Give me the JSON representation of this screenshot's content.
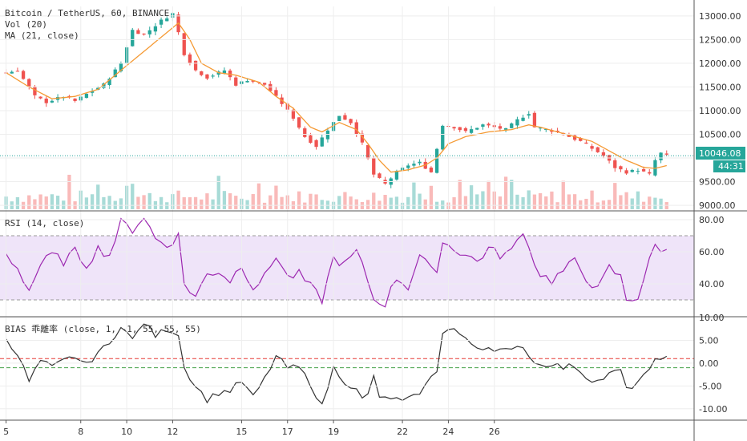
{
  "main_legend": {
    "title": "Bitcoin / TetherUS, 60, BINANCE",
    "vol": "Vol (20)",
    "ma": "MA (21, close)"
  },
  "rsi_legend": "RSI (14, close)",
  "bias_legend": "BIAS 乖離率 (close, 1, -1, 55, 55, 55)",
  "price_badge": {
    "price": "10046.08",
    "countdown": "44:31"
  },
  "colors": {
    "up": "#26a69a",
    "down": "#ef5350",
    "ma": "#f59a34",
    "rsi": "#9c27b0",
    "rsi_band": "#e8d9f7",
    "bias": "#333333",
    "bias_upper": "#e53935",
    "bias_lower": "#43a047",
    "last_price_line": "#26a69a",
    "grid": "#eeeeee"
  },
  "chart_data": [
    {
      "type": "candlestick",
      "ylim": [
        8900,
        13200
      ],
      "yticks": [
        9000,
        9500,
        10000,
        10500,
        11000,
        11500,
        12000,
        12500,
        13000
      ],
      "ytick_labels": [
        "9000.00",
        "9500.00",
        "",
        "10500.00",
        "11000.00",
        "11500.00",
        "12000.00",
        "12500.00",
        "13000.00"
      ],
      "last_price": 10046.08,
      "close_path": [
        [
          0,
          11800
        ],
        [
          2,
          11850
        ],
        [
          5,
          11300
        ],
        [
          7,
          11180
        ],
        [
          10,
          11300
        ],
        [
          12,
          11200
        ],
        [
          14,
          11350
        ],
        [
          17,
          11550
        ],
        [
          20,
          12000
        ],
        [
          22,
          12700
        ],
        [
          24,
          12600
        ],
        [
          27,
          12900
        ],
        [
          29,
          13050
        ],
        [
          30,
          12650
        ],
        [
          31,
          12200
        ],
        [
          33,
          11850
        ],
        [
          35,
          11700
        ],
        [
          38,
          11850
        ],
        [
          40,
          11550
        ],
        [
          42,
          11650
        ],
        [
          45,
          11550
        ],
        [
          48,
          11150
        ],
        [
          50,
          10850
        ],
        [
          52,
          10450
        ],
        [
          54,
          10250
        ],
        [
          56,
          10600
        ],
        [
          58,
          10900
        ],
        [
          60,
          10750
        ],
        [
          62,
          10300
        ],
        [
          64,
          9650
        ],
        [
          66,
          9450
        ],
        [
          68,
          9700
        ],
        [
          70,
          9850
        ],
        [
          72,
          9900
        ],
        [
          74,
          9700
        ],
        [
          76,
          10700
        ],
        [
          78,
          10650
        ],
        [
          80,
          10550
        ],
        [
          83,
          10700
        ],
        [
          85,
          10650
        ],
        [
          87,
          10600
        ],
        [
          89,
          10800
        ],
        [
          91,
          10950
        ],
        [
          92,
          10650
        ],
        [
          94,
          10600
        ],
        [
          96,
          10550
        ],
        [
          98,
          10450
        ],
        [
          100,
          10350
        ],
        [
          102,
          10200
        ],
        [
          104,
          10050
        ],
        [
          106,
          9800
        ],
        [
          108,
          9700
        ],
        [
          110,
          9750
        ],
        [
          112,
          9650
        ],
        [
          113,
          9950
        ],
        [
          114,
          10100
        ],
        [
          115,
          10046
        ]
      ],
      "ma_path": [
        [
          0,
          11800
        ],
        [
          4,
          11500
        ],
        [
          8,
          11250
        ],
        [
          12,
          11300
        ],
        [
          16,
          11450
        ],
        [
          20,
          11850
        ],
        [
          24,
          12250
        ],
        [
          28,
          12650
        ],
        [
          30,
          12850
        ],
        [
          32,
          12500
        ],
        [
          34,
          12000
        ],
        [
          37,
          11800
        ],
        [
          40,
          11750
        ],
        [
          44,
          11600
        ],
        [
          47,
          11300
        ],
        [
          50,
          11050
        ],
        [
          53,
          10650
        ],
        [
          55,
          10550
        ],
        [
          58,
          10750
        ],
        [
          61,
          10600
        ],
        [
          63,
          10300
        ],
        [
          65,
          9950
        ],
        [
          67,
          9700
        ],
        [
          70,
          9750
        ],
        [
          73,
          9850
        ],
        [
          75,
          10000
        ],
        [
          77,
          10300
        ],
        [
          80,
          10450
        ],
        [
          84,
          10550
        ],
        [
          88,
          10600
        ],
        [
          91,
          10700
        ],
        [
          93,
          10650
        ],
        [
          96,
          10550
        ],
        [
          99,
          10450
        ],
        [
          102,
          10350
        ],
        [
          105,
          10150
        ],
        [
          108,
          9950
        ],
        [
          111,
          9800
        ],
        [
          113,
          9780
        ],
        [
          115,
          9840
        ]
      ],
      "volume_max": 450,
      "ma_period": 21
    },
    {
      "type": "line",
      "name": "RSI",
      "ylim": [
        20,
        85
      ],
      "yticks": [
        40,
        60,
        80
      ],
      "ytick_labels": [
        "40.00",
        "60.00",
        "80.00"
      ],
      "band": [
        30,
        70
      ],
      "path": [
        [
          0,
          58
        ],
        [
          2,
          50
        ],
        [
          4,
          36
        ],
        [
          6,
          52
        ],
        [
          8,
          58
        ],
        [
          10,
          54
        ],
        [
          12,
          60
        ],
        [
          14,
          52
        ],
        [
          16,
          62
        ],
        [
          18,
          58
        ],
        [
          20,
          78
        ],
        [
          22,
          74
        ],
        [
          24,
          82
        ],
        [
          26,
          68
        ],
        [
          28,
          64
        ],
        [
          30,
          70
        ],
        [
          31,
          40
        ],
        [
          33,
          32
        ],
        [
          35,
          46
        ],
        [
          37,
          48
        ],
        [
          39,
          42
        ],
        [
          41,
          52
        ],
        [
          43,
          38
        ],
        [
          45,
          44
        ],
        [
          47,
          58
        ],
        [
          49,
          44
        ],
        [
          51,
          46
        ],
        [
          53,
          38
        ],
        [
          55,
          30
        ],
        [
          57,
          56
        ],
        [
          59,
          52
        ],
        [
          61,
          60
        ],
        [
          63,
          42
        ],
        [
          64,
          30
        ],
        [
          66,
          28
        ],
        [
          68,
          44
        ],
        [
          70,
          38
        ],
        [
          72,
          58
        ],
        [
          74,
          48
        ],
        [
          75,
          50
        ],
        [
          76,
          66
        ],
        [
          78,
          62
        ],
        [
          80,
          58
        ],
        [
          82,
          54
        ],
        [
          84,
          62
        ],
        [
          86,
          58
        ],
        [
          88,
          60
        ],
        [
          90,
          74
        ],
        [
          91,
          62
        ],
        [
          93,
          46
        ],
        [
          95,
          42
        ],
        [
          97,
          48
        ],
        [
          99,
          54
        ],
        [
          101,
          44
        ],
        [
          103,
          36
        ],
        [
          105,
          50
        ],
        [
          107,
          44
        ],
        [
          108,
          30
        ],
        [
          110,
          32
        ],
        [
          112,
          54
        ],
        [
          113,
          64
        ],
        [
          114,
          62
        ],
        [
          115,
          60
        ]
      ]
    },
    {
      "type": "line",
      "name": "BIAS",
      "ylim": [
        -12.5,
        10
      ],
      "yticks": [
        -10,
        -5,
        0,
        5,
        10
      ],
      "ytick_labels": [
        "-10.00",
        "-5.00",
        "0.00",
        "5.00",
        "10.00"
      ],
      "upper": 1.0,
      "lower": -1.0,
      "path": [
        [
          0,
          5.5
        ],
        [
          2,
          2
        ],
        [
          4,
          -4
        ],
        [
          6,
          0.5
        ],
        [
          8,
          -1
        ],
        [
          10,
          0.5
        ],
        [
          12,
          1.5
        ],
        [
          14,
          -0.5
        ],
        [
          16,
          2.5
        ],
        [
          18,
          4
        ],
        [
          20,
          8.5
        ],
        [
          22,
          5
        ],
        [
          24,
          9
        ],
        [
          26,
          6
        ],
        [
          28,
          7.5
        ],
        [
          30,
          6.5
        ],
        [
          31,
          -1
        ],
        [
          33,
          -5
        ],
        [
          35,
          -8
        ],
        [
          37,
          -6.5
        ],
        [
          39,
          -6
        ],
        [
          41,
          -4
        ],
        [
          43,
          -7.5
        ],
        [
          45,
          -3.5
        ],
        [
          47,
          1.5
        ],
        [
          49,
          -1
        ],
        [
          51,
          -1
        ],
        [
          53,
          -4.5
        ],
        [
          55,
          -9.5
        ],
        [
          57,
          -1
        ],
        [
          59,
          -4
        ],
        [
          61,
          -6
        ],
        [
          62,
          -8
        ],
        [
          63,
          -7
        ],
        [
          64,
          -2.5
        ],
        [
          65,
          -8
        ],
        [
          67,
          -7.5
        ],
        [
          69,
          -8.5
        ],
        [
          71,
          -7.5
        ],
        [
          73,
          -5
        ],
        [
          75,
          -1.5
        ],
        [
          76,
          7
        ],
        [
          78,
          7.5
        ],
        [
          80,
          5
        ],
        [
          82,
          3.5
        ],
        [
          84,
          3.5
        ],
        [
          86,
          3
        ],
        [
          88,
          2.5
        ],
        [
          90,
          4
        ],
        [
          91,
          1.5
        ],
        [
          93,
          -0.5
        ],
        [
          95,
          0
        ],
        [
          97,
          -1
        ],
        [
          99,
          -0.5
        ],
        [
          101,
          -3
        ],
        [
          103,
          -4
        ],
        [
          105,
          -2.5
        ],
        [
          107,
          -1.5
        ],
        [
          108,
          -6
        ],
        [
          110,
          -4
        ],
        [
          112,
          -2
        ],
        [
          113,
          1
        ],
        [
          114,
          1.5
        ],
        [
          115,
          1
        ]
      ]
    }
  ],
  "x_axis": {
    "n_bars": 116,
    "tick_labels": [
      {
        "bar": 0,
        "label": "5"
      },
      {
        "bar": 13,
        "label": "8"
      },
      {
        "bar": 21,
        "label": "10"
      },
      {
        "bar": 29,
        "label": "12"
      },
      {
        "bar": 41,
        "label": "15"
      },
      {
        "bar": 49,
        "label": "17"
      },
      {
        "bar": 57,
        "label": "19"
      },
      {
        "bar": 69,
        "label": "22"
      },
      {
        "bar": 77,
        "label": "24"
      },
      {
        "bar": 85,
        "label": "26"
      }
    ]
  }
}
